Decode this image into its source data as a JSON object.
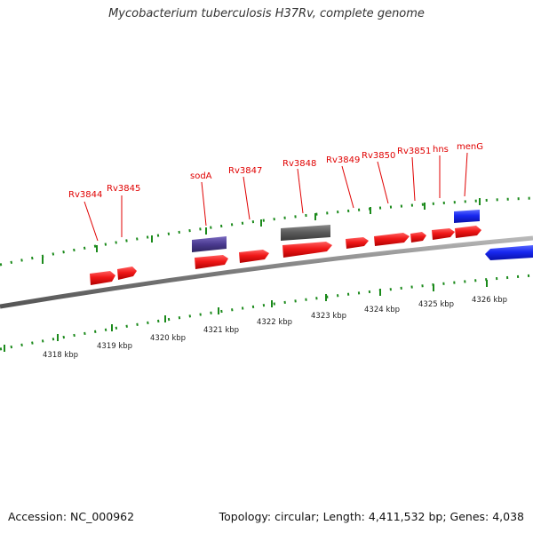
{
  "title": "Mycobacterium tuberculosis H37Rv, complete genome",
  "footer": {
    "accession": "Accession: NC_000962",
    "stats": "Topology: circular; Length: 4,411,532 bp; Genes: 4,038"
  },
  "colors": {
    "gene_label": "#e00000",
    "cds": "#e01010",
    "rna_blue": "#1020e0",
    "gene_purple": "#4a3a90",
    "gene_grey": "#5a5a5a",
    "backbone": "#888888",
    "tick": "#1b8a1b"
  },
  "position_labels": [
    "4318 kbp",
    "4319 kbp",
    "4320 kbp",
    "4321 kbp",
    "4322 kbp",
    "4323 kbp",
    "4324 kbp",
    "4325 kbp",
    "4326 kbp"
  ],
  "genes": [
    {
      "name": "Rv3844",
      "feature_type": "CDS",
      "strand": "+"
    },
    {
      "name": "Rv3845",
      "feature_type": "CDS",
      "strand": "+"
    },
    {
      "name": "sodA",
      "feature_type": "CDS",
      "strand": "+"
    },
    {
      "name": "Rv3847",
      "feature_type": "CDS",
      "strand": "+"
    },
    {
      "name": "Rv3848",
      "feature_type": "CDS",
      "strand": "+"
    },
    {
      "name": "Rv3849",
      "feature_type": "CDS",
      "strand": "+"
    },
    {
      "name": "Rv3850",
      "feature_type": "CDS",
      "strand": "+"
    },
    {
      "name": "Rv3851",
      "feature_type": "CDS",
      "strand": "+"
    },
    {
      "name": "hns",
      "feature_type": "CDS",
      "strand": "+"
    },
    {
      "name": "menG",
      "feature_type": "CDS",
      "strand": "+"
    }
  ]
}
